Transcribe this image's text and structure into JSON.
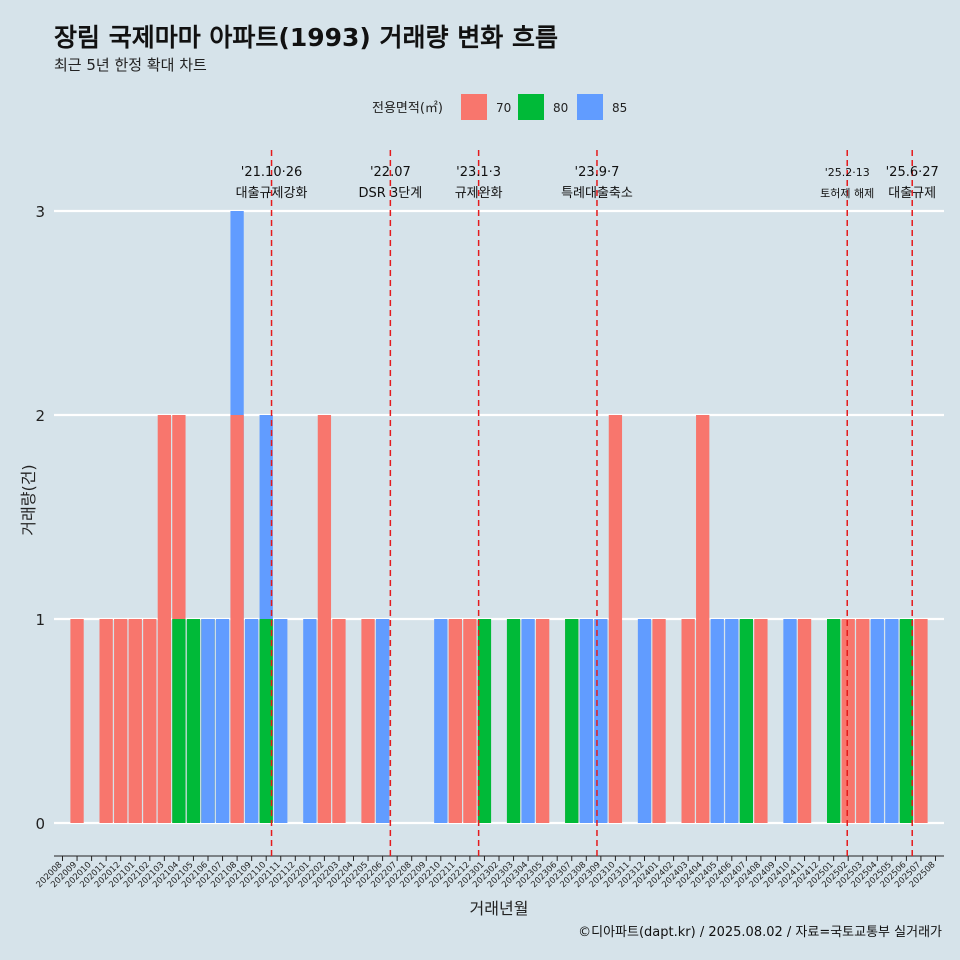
{
  "chart_data": {
    "type": "bar",
    "title": "장림 국제마마 아파트(1993) 거래량 변화 흐름",
    "subtitle": "최근 5년 한정 확대 차트",
    "xlabel": "거래년월",
    "ylabel": "거래량(건)",
    "ylim": [
      0,
      3
    ],
    "yticks": [
      0,
      1,
      2,
      3
    ],
    "grid": true,
    "legend_title": "전용면적(㎡)",
    "legend_position": "top",
    "caption": "©디아파트(dapt.kr) / 2025.08.02 / 자료=국토교통부 실거래가",
    "series": [
      {
        "name": "70",
        "color": "#f8766d"
      },
      {
        "name": "80",
        "color": "#00ba38"
      },
      {
        "name": "85",
        "color": "#619cff"
      }
    ],
    "categories": [
      "202008",
      "202009",
      "202010",
      "202011",
      "202012",
      "202101",
      "202102",
      "202103",
      "202104",
      "202105",
      "202106",
      "202107",
      "202108",
      "202109",
      "202110",
      "202111",
      "202112",
      "202201",
      "202202",
      "202203",
      "202204",
      "202205",
      "202206",
      "202207",
      "202208",
      "202209",
      "202210",
      "202211",
      "202212",
      "202301",
      "202302",
      "202303",
      "202304",
      "202305",
      "202306",
      "202307",
      "202308",
      "202309",
      "202310",
      "202311",
      "202312",
      "202401",
      "202402",
      "202403",
      "202404",
      "202405",
      "202406",
      "202407",
      "202408",
      "202409",
      "202410",
      "202411",
      "202412",
      "202501",
      "202502",
      "202503",
      "202504",
      "202505",
      "202506",
      "202507",
      "202508"
    ],
    "bars": [
      {
        "ym": "202009",
        "series": "70",
        "value": 1
      },
      {
        "ym": "202011",
        "series": "70",
        "value": 1
      },
      {
        "ym": "202012",
        "series": "70",
        "value": 1
      },
      {
        "ym": "202101",
        "series": "70",
        "value": 1
      },
      {
        "ym": "202102",
        "series": "70",
        "value": 1
      },
      {
        "ym": "202103",
        "series": "70",
        "value": 2
      },
      {
        "ym": "202104",
        "series": "70",
        "value": 2
      },
      {
        "ym": "202104",
        "series": "80",
        "value": 1
      },
      {
        "ym": "202105",
        "series": "80",
        "value": 1
      },
      {
        "ym": "202106",
        "series": "70",
        "value": 1
      },
      {
        "ym": "202106",
        "series": "80",
        "value": 1
      },
      {
        "ym": "202106",
        "series": "85",
        "value": 1
      },
      {
        "ym": "202107",
        "series": "85",
        "value": 1
      },
      {
        "ym": "202108",
        "series": "70",
        "value": 2
      },
      {
        "ym": "202108",
        "series": "85",
        "value": 3
      },
      {
        "ym": "202109",
        "series": "85",
        "value": 1
      },
      {
        "ym": "202110",
        "series": "80",
        "value": 1
      },
      {
        "ym": "202110",
        "series": "85",
        "value": 2
      },
      {
        "ym": "202111",
        "series": "85",
        "value": 1
      },
      {
        "ym": "202201",
        "series": "85",
        "value": 1
      },
      {
        "ym": "202202",
        "series": "70",
        "value": 2
      },
      {
        "ym": "202203",
        "series": "70",
        "value": 1
      },
      {
        "ym": "202205",
        "series": "70",
        "value": 1
      },
      {
        "ym": "202206",
        "series": "70",
        "value": 1
      },
      {
        "ym": "202206",
        "series": "85",
        "value": 1
      },
      {
        "ym": "202210",
        "series": "85",
        "value": 1
      },
      {
        "ym": "202211",
        "series": "70",
        "value": 1
      },
      {
        "ym": "202212",
        "series": "70",
        "value": 1
      },
      {
        "ym": "202301",
        "series": "80",
        "value": 1
      },
      {
        "ym": "202303",
        "series": "80",
        "value": 1
      },
      {
        "ym": "202304",
        "series": "85",
        "value": 1
      },
      {
        "ym": "202305",
        "series": "70",
        "value": 1
      },
      {
        "ym": "202307",
        "series": "70",
        "value": 1
      },
      {
        "ym": "202307",
        "series": "80",
        "value": 1
      },
      {
        "ym": "202308",
        "series": "85",
        "value": 1
      },
      {
        "ym": "202309",
        "series": "85",
        "value": 1
      },
      {
        "ym": "202310",
        "series": "70",
        "value": 2
      },
      {
        "ym": "202312",
        "series": "85",
        "value": 1
      },
      {
        "ym": "202401",
        "series": "70",
        "value": 1
      },
      {
        "ym": "202403",
        "series": "70",
        "value": 1
      },
      {
        "ym": "202404",
        "series": "70",
        "value": 2
      },
      {
        "ym": "202405",
        "series": "85",
        "value": 1
      },
      {
        "ym": "202406",
        "series": "85",
        "value": 1
      },
      {
        "ym": "202407",
        "series": "80",
        "value": 1
      },
      {
        "ym": "202408",
        "series": "70",
        "value": 1
      },
      {
        "ym": "202410",
        "series": "85",
        "value": 1
      },
      {
        "ym": "202411",
        "series": "70",
        "value": 1
      },
      {
        "ym": "202501",
        "series": "80",
        "value": 1
      },
      {
        "ym": "202502",
        "series": "70",
        "value": 1
      },
      {
        "ym": "202503",
        "series": "70",
        "value": 1
      },
      {
        "ym": "202504",
        "series": "85",
        "value": 1
      },
      {
        "ym": "202505",
        "series": "85",
        "value": 1
      },
      {
        "ym": "202506",
        "series": "80",
        "value": 1
      },
      {
        "ym": "202507",
        "series": "70",
        "value": 1
      }
    ],
    "events": [
      {
        "date": "2021-10-26",
        "ym": "202110",
        "day": 26,
        "label1": "'21.10·26",
        "label2": "대출규제강화"
      },
      {
        "date": "2022-07",
        "ym": "202207",
        "day": 1,
        "label1": "'22.07",
        "label2": "DSR 3단계"
      },
      {
        "date": "2023-01-03",
        "ym": "202301",
        "day": 3,
        "label1": "'23.1·3",
        "label2": "규제완화"
      },
      {
        "date": "2023-09-07",
        "ym": "202309",
        "day": 7,
        "label1": "'23.9·7",
        "label2": "특례대출축소"
      },
      {
        "date": "2025-02-13",
        "ym": "202502",
        "day": 13,
        "label1": "'25.2·13",
        "label2": "토허제 해제"
      },
      {
        "date": "2025-06-27",
        "ym": "202506",
        "day": 27,
        "label1": "'25.6·27",
        "label2": "대출규제"
      }
    ]
  }
}
